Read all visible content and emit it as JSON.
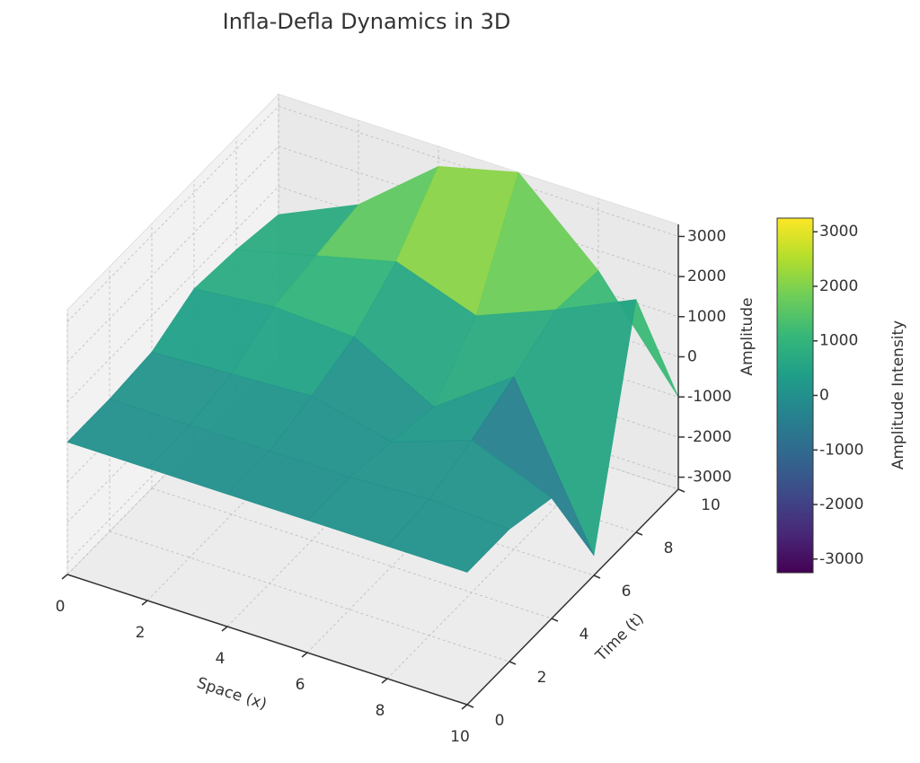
{
  "chart_data": {
    "type": "surface",
    "title": "Infla-Defla Dynamics in 3D",
    "xlabel": "Space (x)",
    "ylabel": "Time (t)",
    "zlabel": "Amplitude",
    "colorbar_label": "Amplitude Intensity",
    "x": [
      0,
      2,
      4,
      6,
      8,
      10
    ],
    "y": [
      0,
      2,
      4,
      6,
      8,
      10
    ],
    "z": [
      [
        0,
        0,
        0,
        0,
        0,
        0
      ],
      [
        0,
        0,
        0,
        0,
        100,
        0
      ],
      [
        100,
        200,
        300,
        -200,
        500,
        -300
      ],
      [
        600,
        800,
        700,
        -400,
        1000,
        -2800
      ],
      [
        500,
        1000,
        1500,
        800,
        1600,
        2500
      ],
      [
        300,
        1200,
        2800,
        3300,
        1500,
        -1000
      ]
    ],
    "xlim": [
      0,
      10
    ],
    "ylim": [
      0,
      10
    ],
    "zlim": [
      -3300,
      3300
    ],
    "xticks": [
      0,
      2,
      4,
      6,
      8,
      10
    ],
    "yticks": [
      0,
      2,
      4,
      6,
      8,
      10
    ],
    "zticks": [
      -3000,
      -2000,
      -1000,
      0,
      1000,
      2000,
      3000
    ],
    "clim": [
      -3250,
      3250
    ],
    "cticks": [
      -3000,
      -2000,
      -1000,
      0,
      1000,
      2000,
      3000
    ],
    "colormap": "viridis",
    "grid": true
  }
}
